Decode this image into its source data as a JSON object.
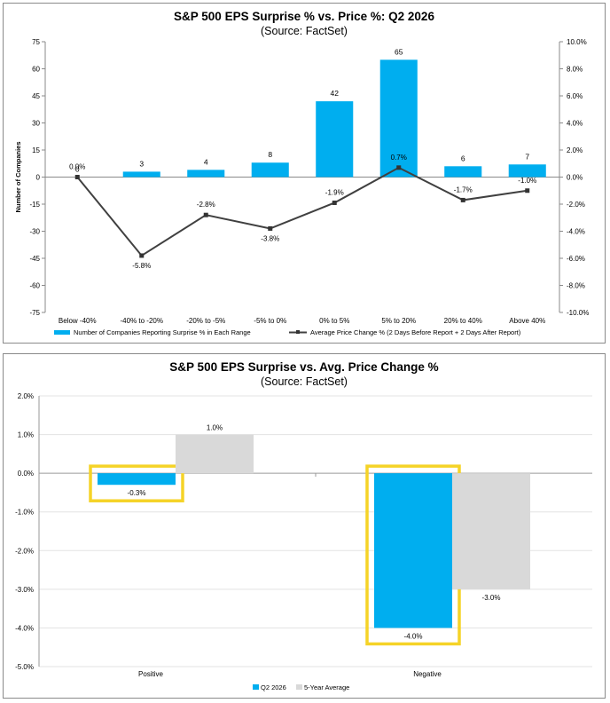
{
  "chart_data": [
    {
      "type": "bar+line",
      "title": "S&P 500 EPS Surprise % vs. Price %: Q2 2026",
      "subtitle": "(Source: FactSet)",
      "ylabel": "Number of Companies",
      "ylim": [
        -75,
        75
      ],
      "y_ticks": [
        "75",
        "60",
        "45",
        "30",
        "15",
        "0",
        "-15",
        "-30",
        "-45",
        "-60",
        "-75"
      ],
      "y2lim": [
        -10,
        10
      ],
      "y2_ticks": [
        "10.0%",
        "8.0%",
        "6.0%",
        "4.0%",
        "2.0%",
        "0.0%",
        "-2.0%",
        "-4.0%",
        "-6.0%",
        "-8.0%",
        "-10.0%"
      ],
      "categories": [
        "Below -40%",
        "-40% to -20%",
        "-20% to -5%",
        "-5% to 0%",
        "0% to 5%",
        "5% to 20%",
        "20% to 40%",
        "Above 40%"
      ],
      "bar_series": {
        "name": "Number of Companies Reporting Surprise % in Each Range",
        "color": "#00aeef",
        "values": [
          0,
          3,
          4,
          8,
          42,
          65,
          6,
          7
        ],
        "labels": [
          "0",
          "3",
          "4",
          "8",
          "42",
          "65",
          "6",
          "7"
        ]
      },
      "line_series": {
        "name": "Average Price Change % (2 Days Before Report + 2 Days After Report)",
        "color": "#404040",
        "values": [
          0.0,
          -5.8,
          -2.8,
          -3.8,
          -1.9,
          0.7,
          -1.7,
          -1.0
        ],
        "labels": [
          "0.0%",
          "-5.8%",
          "-2.8%",
          "-3.8%",
          "-1.9%",
          "0.7%",
          "-1.7%",
          "-1.0%"
        ]
      },
      "grid": false,
      "legend": "bottom"
    },
    {
      "type": "bar",
      "title": "S&P 500 EPS Surprise vs. Avg. Price Change %",
      "subtitle": "(Source: FactSet)",
      "ylim": [
        -5,
        2
      ],
      "y_ticks": [
        "2.0%",
        "1.0%",
        "0.0%",
        "-1.0%",
        "-2.0%",
        "-3.0%",
        "-4.0%",
        "-5.0%"
      ],
      "categories": [
        "Positive",
        "Negative"
      ],
      "series": [
        {
          "name": "Q2 2026",
          "color": "#00aeef",
          "values": [
            -0.3,
            -4.0
          ],
          "labels": [
            "-0.3%",
            "-4.0%"
          ]
        },
        {
          "name": "5-Year Average",
          "color": "#d9d9d9",
          "values": [
            1.0,
            -3.0
          ],
          "labels": [
            "1.0%",
            "-3.0%"
          ]
        }
      ],
      "highlight_color": "#f5d327",
      "grid": true,
      "legend": "bottom"
    }
  ]
}
